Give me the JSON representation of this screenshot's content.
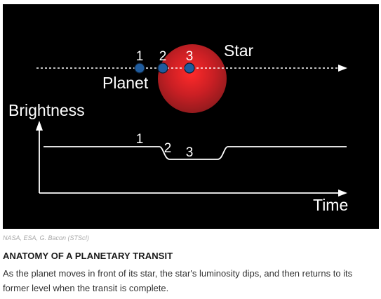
{
  "diagram": {
    "star_label": "Star",
    "planet_label": "Planet",
    "brightness_label": "Brightness",
    "time_label": "Time",
    "orbit_positions": [
      "1",
      "2",
      "3"
    ],
    "curve_positions": [
      "1",
      "2",
      "3"
    ],
    "colors": {
      "background": "#000000",
      "star": "#d8262b",
      "planet": "#1f5c9e",
      "lines": "#ffffff"
    }
  },
  "credit": "NASA, ESA, G. Bacon (STScI)",
  "caption": {
    "title": "ANATOMY OF A PLANETARY TRANSIT",
    "body": "As the planet moves in front of its star, the star's luminosity dips, and then returns to its former level when the transit is complete."
  }
}
